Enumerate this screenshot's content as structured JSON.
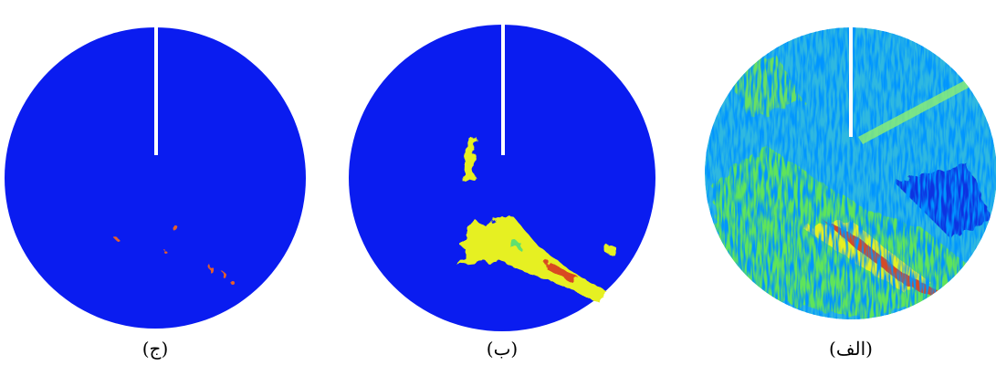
{
  "panels": [
    {
      "caption": "(ج)"
    },
    {
      "caption": "(ب)"
    },
    {
      "caption": "(الف)"
    }
  ]
}
